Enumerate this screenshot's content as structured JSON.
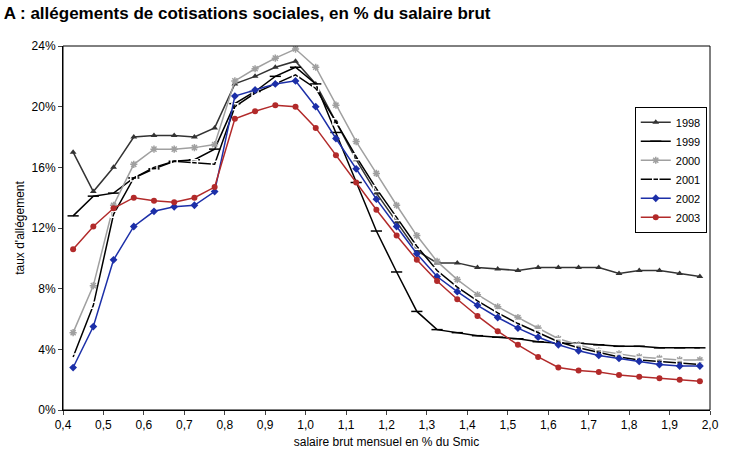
{
  "chart_data": {
    "type": "line",
    "title": "A : allégements de cotisations sociales, en % du salaire brut",
    "x_label": "salaire brut mensuel en % du Smic",
    "y_label": "taux d'allégement",
    "x": [
      0.425,
      0.475,
      0.525,
      0.575,
      0.625,
      0.675,
      0.725,
      0.775,
      0.825,
      0.875,
      0.925,
      0.975,
      1.025,
      1.075,
      1.125,
      1.175,
      1.225,
      1.275,
      1.325,
      1.375,
      1.425,
      1.475,
      1.525,
      1.575,
      1.625,
      1.675,
      1.725,
      1.775,
      1.825,
      1.875,
      1.925,
      1.975
    ],
    "xlim": [
      0.4,
      2.0
    ],
    "xticks": [
      {
        "value": 0.4,
        "label": "0,4"
      },
      {
        "value": 0.5,
        "label": "0,5"
      },
      {
        "value": 0.6,
        "label": "0,6"
      },
      {
        "value": 0.7,
        "label": "0,7"
      },
      {
        "value": 0.8,
        "label": "0,8"
      },
      {
        "value": 0.9,
        "label": "0,9"
      },
      {
        "value": 1.0,
        "label": "1,0"
      },
      {
        "value": 1.1,
        "label": "1,1"
      },
      {
        "value": 1.2,
        "label": "1,2"
      },
      {
        "value": 1.3,
        "label": "1,3"
      },
      {
        "value": 1.4,
        "label": "1,4"
      },
      {
        "value": 1.5,
        "label": "1,5"
      },
      {
        "value": 1.6,
        "label": "1,6"
      },
      {
        "value": 1.7,
        "label": "1,7"
      },
      {
        "value": 1.8,
        "label": "1,8"
      },
      {
        "value": 1.9,
        "label": "1,9"
      },
      {
        "value": 2.0,
        "label": "2,0"
      }
    ],
    "ylim": [
      0,
      24
    ],
    "yticks": [
      {
        "value": 0,
        "label": "0%"
      },
      {
        "value": 4,
        "label": "4%"
      },
      {
        "value": 8,
        "label": "8%"
      },
      {
        "value": 12,
        "label": "12%"
      },
      {
        "value": 16,
        "label": "16%"
      },
      {
        "value": 20,
        "label": "20%"
      },
      {
        "value": 24,
        "label": "24%"
      }
    ],
    "grid": false,
    "legend": "right",
    "series": [
      {
        "name": "1998",
        "color": "#333333",
        "marker": "triangle-up",
        "values": [
          17,
          14.4,
          16,
          18,
          18.1,
          18.1,
          18,
          18.6,
          21.5,
          22,
          22.6,
          23,
          21.5,
          19,
          16.5,
          14.3,
          12.4,
          10.5,
          9.7,
          9.7,
          9.4,
          9.3,
          9.2,
          9.4,
          9.4,
          9.4,
          9.4,
          9.0,
          9.2,
          9.2,
          9.0,
          8.8
        ]
      },
      {
        "name": "1999",
        "color": "#000000",
        "marker": "line-ew",
        "values": [
          12.8,
          14.1,
          14.3,
          15.3,
          15.9,
          16.4,
          16.5,
          17.2,
          20.2,
          21,
          22,
          22.6,
          21.5,
          18.3,
          15,
          11.8,
          9.1,
          6.5,
          5.3,
          5.1,
          4.9,
          4.8,
          4.7,
          4.5,
          4.4,
          4.4,
          4.3,
          4.2,
          4.2,
          4.1,
          4.1,
          4.1
        ]
      },
      {
        "name": "2000",
        "color": "#a0a0a0",
        "marker": "asterisk",
        "values": [
          5.1,
          8.2,
          13.5,
          16.2,
          17.2,
          17.2,
          17.3,
          17.5,
          21.7,
          22.5,
          23.2,
          23.8,
          22.6,
          20.1,
          17.7,
          15.6,
          13.5,
          11.5,
          9.8,
          8.6,
          7.6,
          6.8,
          6.1,
          5.4,
          4.7,
          4.3,
          3.9,
          3.7,
          3.5,
          3.4,
          3.3,
          3.3
        ]
      },
      {
        "name": "2001",
        "color": "#000000",
        "marker": "square-open",
        "values": [
          3.5,
          6.9,
          12.9,
          15.3,
          16,
          16.4,
          16.3,
          16.2,
          20,
          20.9,
          21.5,
          22.1,
          21.2,
          19,
          16.7,
          14.6,
          12.7,
          10.8,
          9.2,
          8.1,
          7.2,
          6.4,
          5.7,
          5.1,
          4.5,
          4.1,
          3.8,
          3.5,
          3.3,
          3.2,
          3.1,
          3.0
        ]
      },
      {
        "name": "2002",
        "color": "#1c2fa8",
        "marker": "diamond",
        "values": [
          2.8,
          5.5,
          9.9,
          12.1,
          13.1,
          13.4,
          13.5,
          14.4,
          20.7,
          21.1,
          21.5,
          21.7,
          20.0,
          17.9,
          15.9,
          13.9,
          12.1,
          10.3,
          8.8,
          7.8,
          6.9,
          6.1,
          5.4,
          4.8,
          4.3,
          3.9,
          3.6,
          3.4,
          3.2,
          3.0,
          2.9,
          2.9
        ]
      },
      {
        "name": "2003",
        "color": "#b22a2a",
        "marker": "circle",
        "values": [
          10.6,
          12.1,
          13.3,
          14.0,
          13.8,
          13.7,
          14.0,
          14.7,
          19.2,
          19.7,
          20.1,
          20.0,
          18.6,
          16.8,
          15.0,
          13.2,
          11.5,
          9.9,
          8.5,
          7.3,
          6.2,
          5.2,
          4.3,
          3.5,
          2.8,
          2.6,
          2.5,
          2.3,
          2.2,
          2.1,
          2.0,
          1.9
        ]
      }
    ]
  }
}
